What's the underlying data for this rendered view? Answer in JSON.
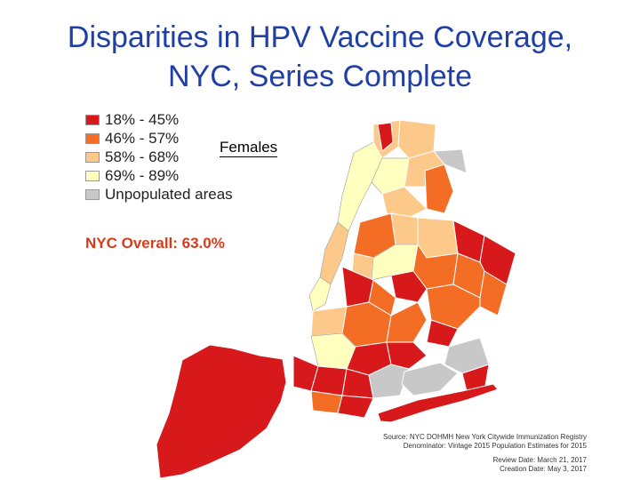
{
  "title_line1": "Disparities in HPV Vaccine Coverage,",
  "title_line2": "NYC, Series Complete",
  "legend": [
    {
      "label": "18% - 45%",
      "color": "#d7191c"
    },
    {
      "label": "46% - 57%",
      "color": "#f46d25"
    },
    {
      "label": "58% - 68%",
      "color": "#fdc98a"
    },
    {
      "label": "69% - 89%",
      "color": "#ffffbf"
    },
    {
      "label": "Unpopulated areas",
      "color": "#c8c8c8"
    }
  ],
  "subtitle": "Females",
  "overall": "NYC Overall: 63.0%",
  "source": {
    "line1": "Source: NYC DOHMH New York Citywide Immunization Registry",
    "line2": "Denominator: Vintage 2015 Population Estimates for 2015",
    "line3": "Review Date: March 21, 2017",
    "line4": "Creation Date: May 3, 2017"
  }
}
